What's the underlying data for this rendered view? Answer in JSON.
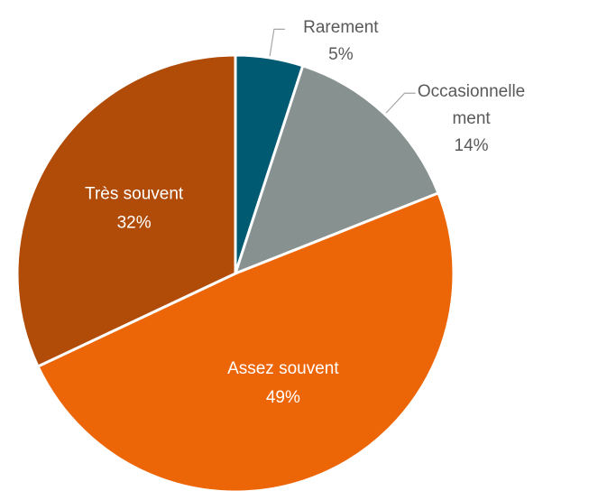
{
  "chart_data": {
    "type": "pie",
    "categories": [
      "Rarement",
      "Occasionnellement",
      "Assez souvent",
      "Très souvent"
    ],
    "values": [
      5,
      14,
      49,
      32
    ],
    "value_labels": [
      "5%",
      "14%",
      "49%",
      "32%"
    ],
    "colors": [
      "#005b72",
      "#879190",
      "#ec6608",
      "#b04b08"
    ]
  }
}
